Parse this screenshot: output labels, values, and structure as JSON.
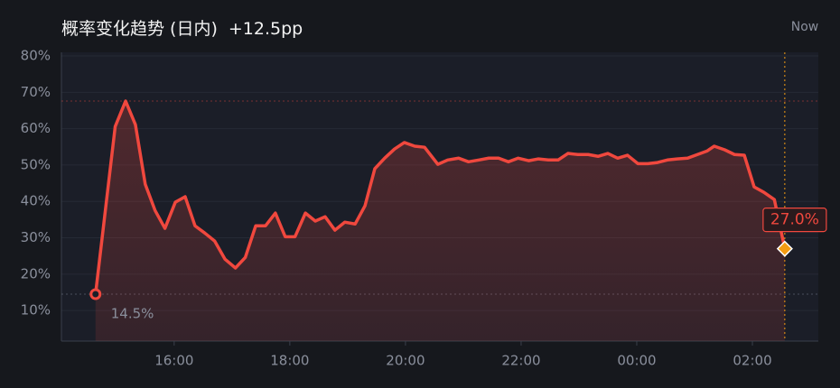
{
  "chart_data": {
    "type": "line",
    "title": "概率变化趋势 (日内)",
    "subtitle": "+12.5pp",
    "now_label": "Now",
    "color": "#f0483e",
    "marker_color": "#f39c12",
    "grid": true,
    "xlim": [
      14.05,
      27.14
    ],
    "ylim": [
      1.6,
      81
    ],
    "xticks": [
      {
        "value": 16,
        "label": "16:00"
      },
      {
        "value": 18,
        "label": "18:00"
      },
      {
        "value": 20,
        "label": "20:00"
      },
      {
        "value": 22,
        "label": "22:00"
      },
      {
        "value": 24,
        "label": "00:00"
      },
      {
        "value": 26,
        "label": "02:00"
      }
    ],
    "yticks": [
      {
        "value": 10,
        "label": "10%"
      },
      {
        "value": 20,
        "label": "20%"
      },
      {
        "value": 30,
        "label": "30%"
      },
      {
        "value": 40,
        "label": "40%"
      },
      {
        "value": 50,
        "label": "50%"
      },
      {
        "value": 60,
        "label": "60%"
      },
      {
        "value": 70,
        "label": "70%"
      },
      {
        "value": 80,
        "label": "80%"
      }
    ],
    "x": [
      14.64,
      14.98,
      15.16,
      15.33,
      15.5,
      15.67,
      15.84,
      16.02,
      16.19,
      16.36,
      16.53,
      16.7,
      16.88,
      17.06,
      17.23,
      17.41,
      17.58,
      17.75,
      17.92,
      18.09,
      18.27,
      18.44,
      18.61,
      18.78,
      18.95,
      19.13,
      19.3,
      19.47,
      19.64,
      19.81,
      19.98,
      20.16,
      20.33,
      20.56,
      20.73,
      20.92,
      21.09,
      21.27,
      21.44,
      21.61,
      21.78,
      21.95,
      22.13,
      22.3,
      22.47,
      22.64,
      22.81,
      22.98,
      23.16,
      23.33,
      23.5,
      23.67,
      23.84,
      24.02,
      24.19,
      24.36,
      24.53,
      24.7,
      24.88,
      25.05,
      25.22,
      25.34,
      25.52,
      25.69,
      25.86,
      26.03,
      26.2,
      26.38,
      26.56
    ],
    "values": [
      14.5,
      60.6,
      67.6,
      61.1,
      44.7,
      37.5,
      32.6,
      39.8,
      41.3,
      33.3,
      31.3,
      29.1,
      24.1,
      21.7,
      24.6,
      33.3,
      33.3,
      36.8,
      30.3,
      30.3,
      36.8,
      34.6,
      35.8,
      32.1,
      34.3,
      33.8,
      38.8,
      49.0,
      51.9,
      54.4,
      56.2,
      55.2,
      54.9,
      50.2,
      51.4,
      51.9,
      50.9,
      51.4,
      51.9,
      51.9,
      50.9,
      51.9,
      51.2,
      51.7,
      51.4,
      51.4,
      53.2,
      52.9,
      52.9,
      52.4,
      53.2,
      51.9,
      52.7,
      50.4,
      50.4,
      50.7,
      51.4,
      51.7,
      51.9,
      52.9,
      53.9,
      55.2,
      54.2,
      52.9,
      52.7,
      44.0,
      42.5,
      40.5,
      27.0
    ],
    "value_labels": [
      "14.5%",
      null,
      null,
      null,
      null,
      null,
      null,
      null,
      null,
      null,
      null,
      null,
      null,
      null,
      null,
      null,
      null,
      null,
      null,
      null,
      null,
      null,
      null,
      null,
      null,
      null,
      null,
      null,
      null,
      null,
      null,
      null,
      null,
      null,
      null,
      null,
      null,
      null,
      null,
      null,
      null,
      null,
      null,
      null,
      null,
      null,
      null,
      null,
      null,
      null,
      null,
      null,
      null,
      null,
      null,
      null,
      null,
      null,
      null,
      null,
      null,
      null,
      null,
      null,
      null,
      null,
      null,
      null,
      "27.0%"
    ]
  }
}
